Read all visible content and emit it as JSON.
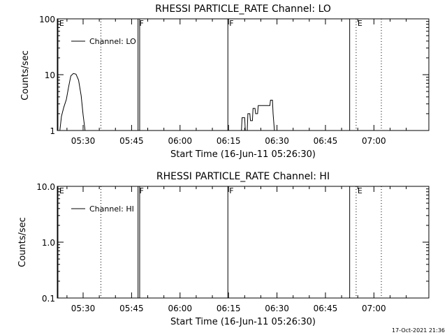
{
  "footer": {
    "timestamp": "17-Oct-2021 21:36"
  },
  "chart_data": [
    {
      "type": "line",
      "title": "RHESSI PARTICLE_RATE Channel: LO",
      "xlabel": "Start Time (16-Jun-11 05:26:30)",
      "ylabel": "Counts/sec",
      "y_scale": "log",
      "ylim": [
        1,
        100
      ],
      "y_ticks": [
        "1",
        "10",
        "100"
      ],
      "y_tick_values": [
        1,
        10,
        100
      ],
      "xlim_minutes": [
        322,
        437
      ],
      "x_ticks": [
        "05:30",
        "05:45",
        "06:00",
        "06:15",
        "06:30",
        "06:45",
        "07:00"
      ],
      "x_tick_minutes": [
        330,
        345,
        360,
        375,
        390,
        405,
        420
      ],
      "legend": {
        "label": "Channel: LO",
        "position": "top-left"
      },
      "series": [
        {
          "name": "Channel: LO",
          "segments": [
            {
              "x": [
                322.8,
                323.3,
                324.0,
                324.8,
                325.5,
                326.2,
                327.0,
                327.8,
                328.6,
                329.4,
                330.0,
                330.6
              ],
              "y": [
                1.0,
                1.8,
                2.6,
                3.6,
                6.0,
                9.5,
                10.5,
                10.2,
                8.0,
                4.2,
                1.9,
                1.0
              ]
            },
            {
              "x": [
                379.0,
                379.2,
                380.0,
                380.2,
                380.8,
                381.0,
                381.6,
                381.8,
                382.4,
                382.6,
                383.2,
                383.4,
                384.0,
                384.2,
                387.8,
                388.0,
                388.6,
                388.8,
                389.2
              ],
              "y": [
                1.0,
                1.7,
                1.7,
                1.0,
                1.0,
                2.0,
                2.0,
                1.5,
                1.5,
                2.5,
                2.5,
                2.0,
                2.0,
                2.8,
                2.8,
                3.5,
                3.5,
                2.0,
                1.0
              ]
            }
          ]
        }
      ],
      "markers": [
        {
          "label": "E",
          "x": 322.2,
          "style": "solid"
        },
        {
          "label": "",
          "x": 335.5,
          "style": "dotted"
        },
        {
          "label": "F",
          "x": 347.0,
          "style": "solid"
        },
        {
          "label": "",
          "x": 347.5,
          "style": "solid"
        },
        {
          "label": "F",
          "x": 374.8,
          "style": "solid"
        },
        {
          "label": "",
          "x": 412.5,
          "style": "solid"
        },
        {
          "label": "E",
          "x": 414.5,
          "style": "dotted"
        },
        {
          "label": "",
          "x": 422.3,
          "style": "dotted"
        }
      ]
    },
    {
      "type": "line",
      "title": "RHESSI PARTICLE_RATE Channel: HI",
      "xlabel": "Start Time (16-Jun-11 05:26:30)",
      "ylabel": "Counts/sec",
      "y_scale": "log",
      "ylim": [
        0.1,
        10
      ],
      "y_ticks": [
        "0.1",
        "1.0",
        "10.0"
      ],
      "y_tick_values": [
        0.1,
        1,
        10
      ],
      "xlim_minutes": [
        322,
        437
      ],
      "x_ticks": [
        "05:30",
        "05:45",
        "06:00",
        "06:15",
        "06:30",
        "06:45",
        "07:00"
      ],
      "x_tick_minutes": [
        330,
        345,
        360,
        375,
        390,
        405,
        420
      ],
      "legend": {
        "label": "Channel: HI",
        "position": "top-left"
      },
      "series": [
        {
          "name": "Channel: HI",
          "segments": []
        }
      ],
      "markers": [
        {
          "label": "E",
          "x": 322.2,
          "style": "solid"
        },
        {
          "label": "",
          "x": 335.5,
          "style": "dotted"
        },
        {
          "label": "F",
          "x": 347.0,
          "style": "solid"
        },
        {
          "label": "",
          "x": 347.5,
          "style": "solid"
        },
        {
          "label": "F",
          "x": 374.8,
          "style": "solid"
        },
        {
          "label": "",
          "x": 412.5,
          "style": "solid"
        },
        {
          "label": "E",
          "x": 414.5,
          "style": "dotted"
        },
        {
          "label": "",
          "x": 422.3,
          "style": "dotted"
        }
      ]
    }
  ]
}
